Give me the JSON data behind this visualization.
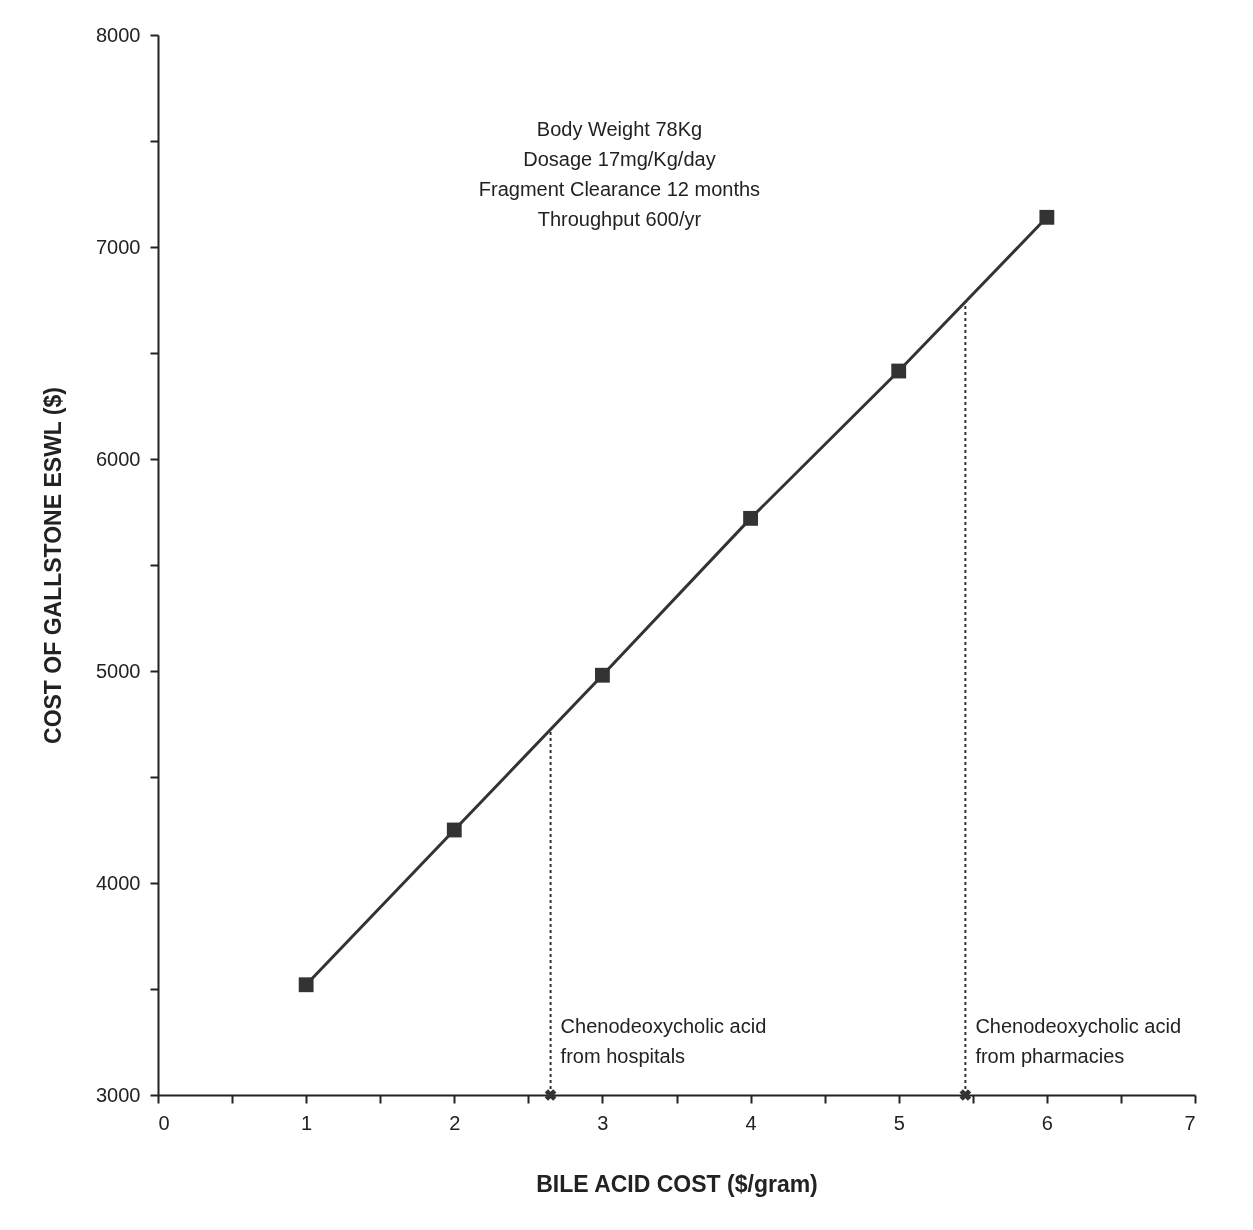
{
  "chart_data": {
    "type": "line",
    "xlabel": "BILE  ACID  COST  ($/gram)",
    "ylabel": "COST OF GALLSTONE ESWL ($)",
    "annotations": [
      "Body Weight 78Kg",
      "Dosage  17mg/Kg/day",
      "Fragment Clearance 12 months",
      "Throughput  600/yr"
    ],
    "x": [
      1,
      2,
      3,
      4,
      5,
      6
    ],
    "series": [
      {
        "color": "#333333",
        "values": [
          3520,
          4250,
          4980,
          5720,
          6415,
          7140
        ]
      },
      {
        "type": "scatter",
        "x": [
          2.65,
          5.45
        ],
        "values": [
          3000,
          3000
        ],
        "marker": "cross",
        "color": "#333333"
      }
    ],
    "xlim": [
      0,
      7
    ],
    "ylim": [
      3000,
      8000
    ],
    "xticks": [
      0,
      {
        "value": 0.5,
        "label": null
      },
      1,
      {
        "value": 1.5,
        "label": null
      },
      2,
      {
        "value": 2.5,
        "label": null
      },
      3,
      {
        "value": 3.5,
        "label": null
      },
      4,
      {
        "value": 4.5,
        "label": null
      },
      5,
      {
        "value": 5.5,
        "label": null
      },
      6,
      {
        "value": 6.5,
        "label": null
      },
      7
    ],
    "yticks": [
      3000,
      {
        "value": 3500,
        "label": null
      },
      4000,
      {
        "value": 4500,
        "label": null
      },
      5000,
      {
        "value": 5500,
        "label": null
      },
      6000,
      {
        "value": 6500,
        "label": null
      },
      7000,
      {
        "value": 7500,
        "label": null
      },
      8000
    ],
    "ref_lines": [
      {
        "axis": "x",
        "value": 2.65,
        "label": "Chenodeoxycholic acid\nfrom  hospitals",
        "line_style": "dotted",
        "color": "#333333"
      },
      {
        "axis": "x",
        "value": 5.45,
        "label": "Chenodeoxycholic acid\nfrom  pharmacies",
        "line_style": "dotted",
        "color": "#333333"
      }
    ],
    "grid": false,
    "marker": "square",
    "line_style": "solid"
  }
}
